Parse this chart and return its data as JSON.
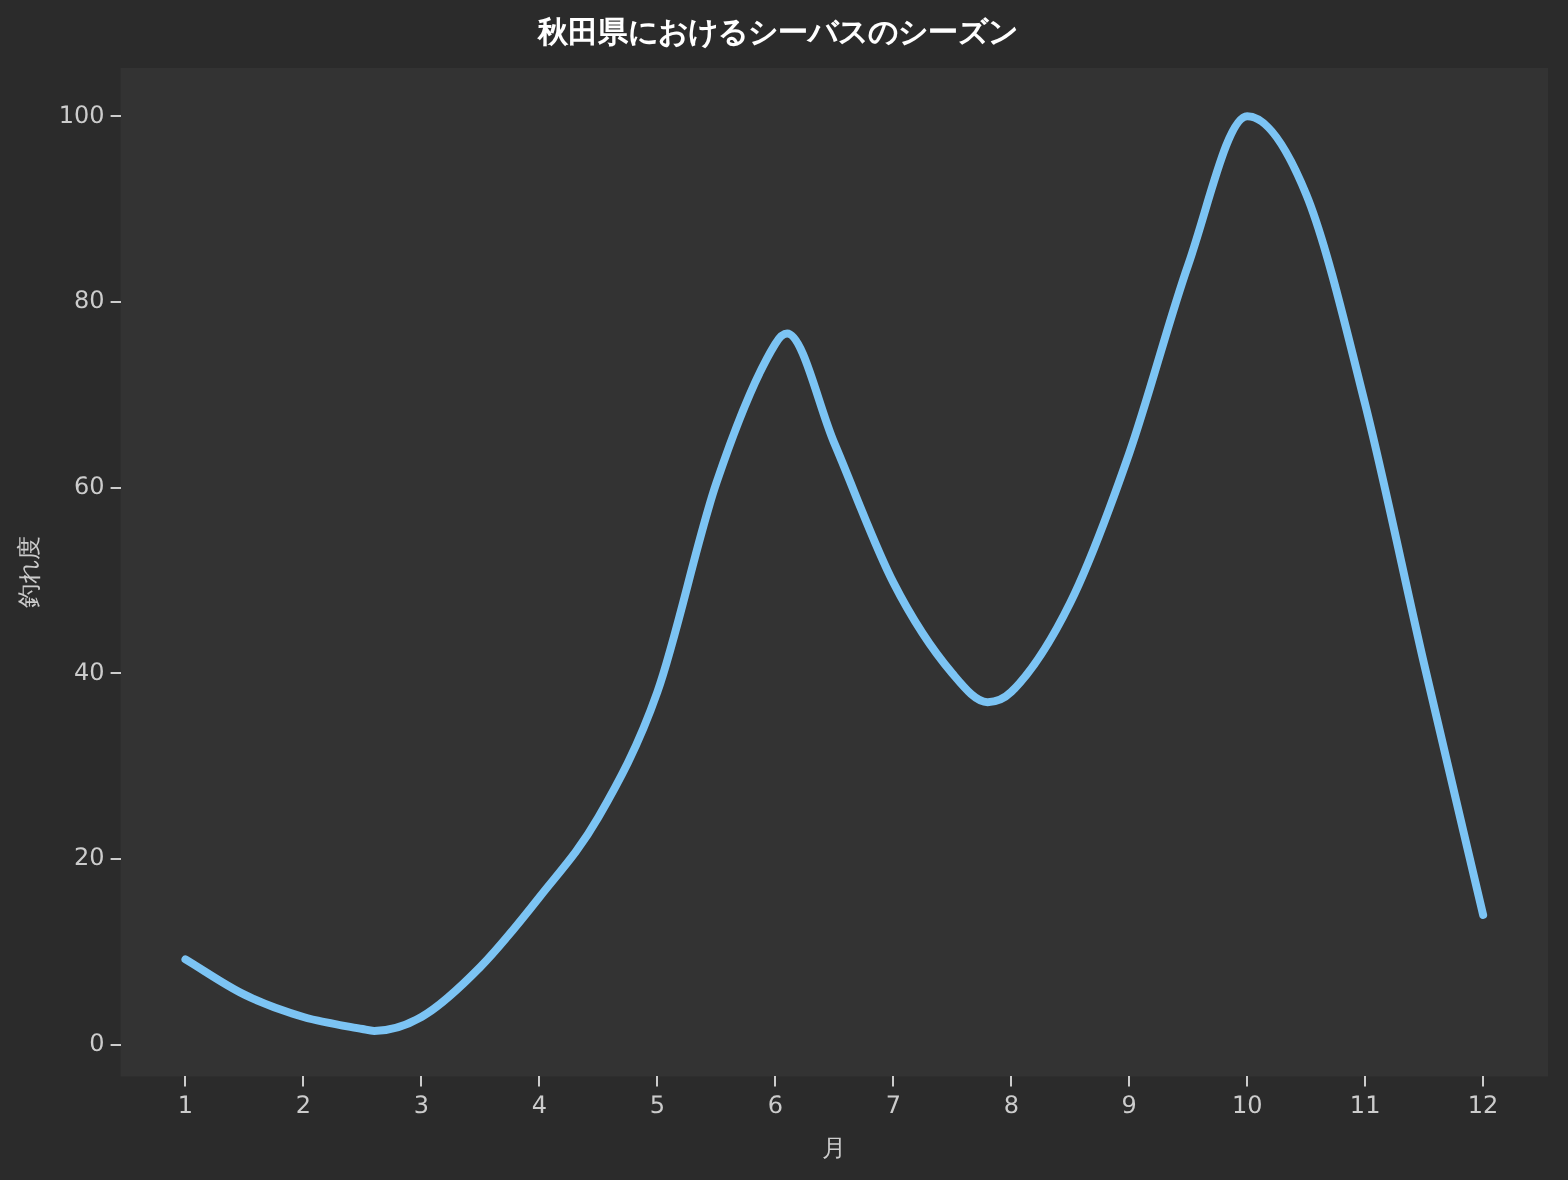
{
  "chart_data": {
    "type": "line",
    "title": "秋田県におけるシーバスのシーズン",
    "xlabel": "月",
    "ylabel": "釣れ度",
    "x": [
      1,
      1.5,
      2,
      2.5,
      2.6,
      3,
      3.5,
      4,
      4.5,
      5,
      5.5,
      6,
      6.1,
      6.5,
      7,
      7.5,
      7.8,
      8,
      8.5,
      9,
      9.5,
      10,
      10.5,
      11,
      11.5,
      12
    ],
    "series": [
      {
        "color": "#7cc4f4",
        "values": [
          9.2,
          5.4,
          3,
          1.7,
          1.5,
          3,
          8.4,
          15.9,
          24.5,
          38,
          60.5,
          75.5,
          76.6,
          64.8,
          49.8,
          40,
          36.9,
          38,
          47.6,
          63.7,
          84,
          100,
          91.6,
          69,
          41,
          14
        ]
      }
    ],
    "xlim": [
      0.45,
      12.55
    ],
    "xticks": [
      1,
      2,
      3,
      4,
      5,
      6,
      7,
      8,
      9,
      10,
      11,
      12
    ],
    "ylim": [
      -3.4,
      105.2
    ],
    "yticks": [
      0,
      20,
      40,
      60,
      80,
      100
    ],
    "grid": false,
    "legend": false,
    "marker": "none",
    "line_style": "solid"
  }
}
